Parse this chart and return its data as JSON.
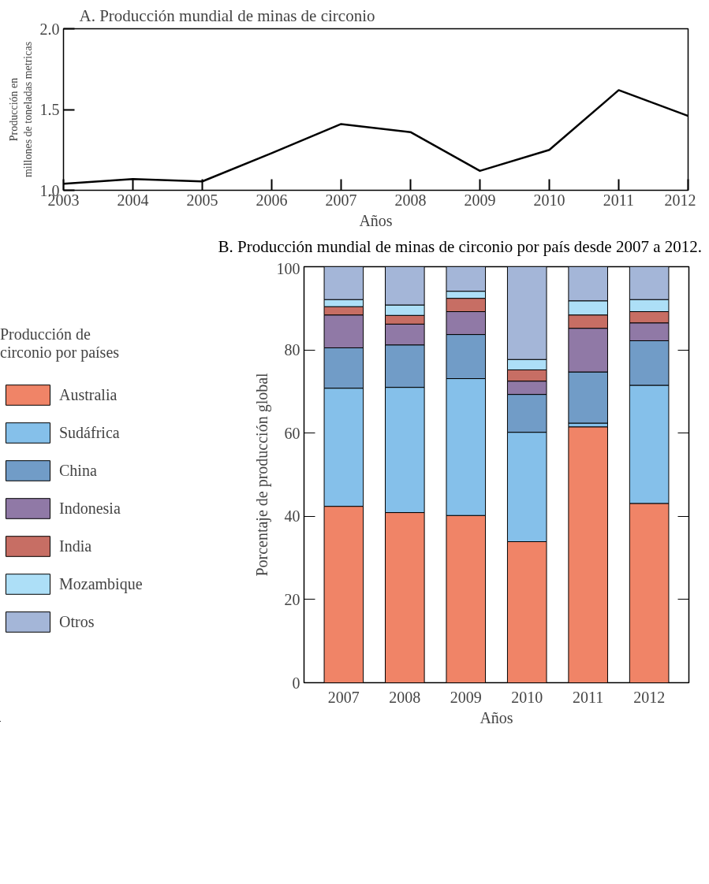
{
  "chart_data": [
    {
      "type": "line",
      "title": "A.  Producción mundial de minas de circonio",
      "xlabel": "Años",
      "ylabel": "Producción en\nmillones de toneladas metricas",
      "x": [
        2003,
        2004,
        2005,
        2006,
        2007,
        2008,
        2009,
        2010,
        2011,
        2012
      ],
      "series": [
        {
          "color": "#000000",
          "values": [
            1.04,
            1.07,
            1.055,
            1.23,
            1.41,
            1.36,
            1.12,
            1.25,
            1.62,
            1.46
          ]
        }
      ],
      "xlim": [
        2003,
        2012
      ],
      "xticks": [
        2003,
        2004,
        2005,
        2006,
        2007,
        2008,
        2009,
        2010,
        2011,
        2012
      ],
      "ylim": [
        1.0,
        2.0
      ],
      "yticks": [
        {
          "value": 1.0,
          "label": "1.0"
        },
        {
          "value": 1.5,
          "label": "1.5"
        },
        {
          "value": 2.0,
          "label": "2.0"
        }
      ],
      "grid": false,
      "line_style": "solid"
    },
    {
      "type": "bar",
      "stacked": true,
      "title": "B. Producción mundial de minas de circonio por país desde 2007 a 2012.",
      "xlabel": "Años",
      "ylabel": "Porcentaje de producción global",
      "legend_title": "Producción de\ncirconio por países",
      "categories": [
        "2007",
        "2008",
        "2009",
        "2010",
        "2011",
        "2012"
      ],
      "series": [
        {
          "name": "Australia",
          "color": "#f08467",
          "values": [
            42.4,
            40.9,
            40.2,
            33.9,
            61.5,
            43.1
          ]
        },
        {
          "name": "Sudáfrica",
          "color": "#85c0ea",
          "values": [
            28.4,
            30.1,
            32.9,
            26.3,
            0.9,
            28.4
          ]
        },
        {
          "name": "China",
          "color": "#719cc7",
          "values": [
            9.7,
            10.2,
            10.6,
            9.1,
            12.3,
            10.7
          ]
        },
        {
          "name": "Indonesia",
          "color": "#9079a6",
          "values": [
            7.9,
            5.0,
            5.5,
            3.2,
            10.5,
            4.3
          ]
        },
        {
          "name": "India",
          "color": "#c76e64",
          "values": [
            2.0,
            2.1,
            3.2,
            2.7,
            3.2,
            2.7
          ]
        },
        {
          "name": "Mozambique",
          "color": "#addff7",
          "values": [
            1.7,
            2.5,
            1.7,
            2.5,
            3.4,
            2.9
          ]
        },
        {
          "name": "Otros",
          "color": "#a4b6d8",
          "values": [
            7.9,
            9.2,
            5.9,
            22.3,
            8.2,
            7.9
          ]
        }
      ],
      "ylim": [
        0,
        100
      ],
      "yticks": [
        0,
        20,
        40,
        60,
        80,
        100
      ],
      "grid": false,
      "legend": "left"
    }
  ]
}
